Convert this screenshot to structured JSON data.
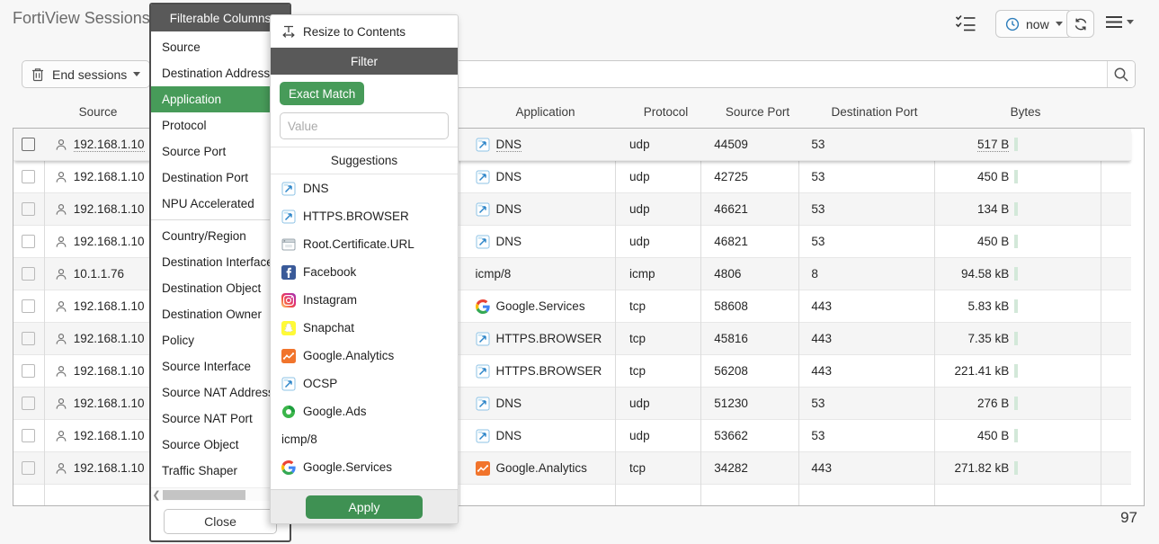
{
  "page": {
    "title": "FortiView Sessions",
    "session_count": "97"
  },
  "colors": {
    "accent_green": "#479b59",
    "apply_green": "#3f9153",
    "dark_bar": "#595959",
    "row_alt": "#f5f5f5"
  },
  "toolbar": {
    "now_label": "now"
  },
  "controls": {
    "end_sessions_label": "End sessions",
    "search_value": ""
  },
  "column_menu": {
    "title": "Filterable Columns",
    "close_label": "Close",
    "items": [
      {
        "label": "Source"
      },
      {
        "label": "Destination Address"
      },
      {
        "label": "Application",
        "selected": true
      },
      {
        "label": "Protocol"
      },
      {
        "label": "Source Port"
      },
      {
        "label": "Destination Port"
      },
      {
        "label": "NPU Accelerated",
        "divider_after": true
      },
      {
        "label": "Country/Region"
      },
      {
        "label": "Destination Interface"
      },
      {
        "label": "Destination Object"
      },
      {
        "label": "Destination Owner"
      },
      {
        "label": "Policy"
      },
      {
        "label": "Source Interface"
      },
      {
        "label": "Source NAT Address"
      },
      {
        "label": "Source NAT Port"
      },
      {
        "label": "Source Object"
      },
      {
        "label": "Traffic Shaper"
      }
    ]
  },
  "filter_popup": {
    "resize_label": "Resize to Contents",
    "title": "Filter",
    "exact_match_label": "Exact Match",
    "value_placeholder": "Value",
    "suggestions_label": "Suggestions",
    "apply_label": "Apply",
    "suggestions": [
      {
        "label": "DNS",
        "icon": "application-generic"
      },
      {
        "label": "HTTPS.BROWSER",
        "icon": "application-generic"
      },
      {
        "label": "Root.Certificate.URL",
        "icon": "browser-window"
      },
      {
        "label": "Facebook",
        "icon": "facebook"
      },
      {
        "label": "Instagram",
        "icon": "instagram"
      },
      {
        "label": "Snapchat",
        "icon": "snapchat"
      },
      {
        "label": "Google.Analytics",
        "icon": "google-analytics"
      },
      {
        "label": "OCSP",
        "icon": "application-generic"
      },
      {
        "label": "Google.Ads",
        "icon": "google-ads"
      },
      {
        "label": "icmp/8",
        "icon": "none"
      },
      {
        "label": "Google.Services",
        "icon": "google-g"
      }
    ]
  },
  "table": {
    "headers": [
      "Source",
      "Application",
      "Protocol",
      "Source Port",
      "Destination Port",
      "Bytes"
    ],
    "rows": [
      {
        "source": "192.168.1.10",
        "application": "DNS",
        "app_icon": "application-generic",
        "protocol": "udp",
        "source_port": "44509",
        "destination_port": "53",
        "bytes": "517 B",
        "hovered": true
      },
      {
        "source": "192.168.1.10",
        "application": "DNS",
        "app_icon": "application-generic",
        "protocol": "udp",
        "source_port": "42725",
        "destination_port": "53",
        "bytes": "450 B"
      },
      {
        "source": "192.168.1.10",
        "application": "DNS",
        "app_icon": "application-generic",
        "protocol": "udp",
        "source_port": "46621",
        "destination_port": "53",
        "bytes": "134 B"
      },
      {
        "source": "192.168.1.10",
        "application": "DNS",
        "app_icon": "application-generic",
        "protocol": "udp",
        "source_port": "46821",
        "destination_port": "53",
        "bytes": "450 B"
      },
      {
        "source": "10.1.1.76",
        "application": "icmp/8",
        "app_icon": "none",
        "protocol": "icmp",
        "source_port": "4806",
        "destination_port": "8",
        "bytes": "94.58 kB"
      },
      {
        "source": "192.168.1.10",
        "application": "Google.Services",
        "app_icon": "google-g",
        "protocol": "tcp",
        "source_port": "58608",
        "destination_port": "443",
        "bytes": "5.83 kB"
      },
      {
        "source": "192.168.1.10",
        "application": "HTTPS.BROWSER",
        "app_icon": "application-generic",
        "protocol": "tcp",
        "source_port": "45816",
        "destination_port": "443",
        "bytes": "7.35 kB"
      },
      {
        "source": "192.168.1.10",
        "application": "HTTPS.BROWSER",
        "app_icon": "application-generic",
        "protocol": "tcp",
        "source_port": "56208",
        "destination_port": "443",
        "bytes": "221.41 kB"
      },
      {
        "source": "192.168.1.10",
        "application": "DNS",
        "app_icon": "application-generic",
        "protocol": "udp",
        "source_port": "51230",
        "destination_port": "53",
        "bytes": "276 B"
      },
      {
        "source": "192.168.1.10",
        "application": "DNS",
        "app_icon": "application-generic",
        "protocol": "udp",
        "source_port": "53662",
        "destination_port": "53",
        "bytes": "450 B"
      },
      {
        "source": "192.168.1.10",
        "application": "Google.Analytics",
        "app_icon": "google-analytics",
        "protocol": "tcp",
        "source_port": "34282",
        "destination_port": "443",
        "bytes": "271.82 kB"
      }
    ]
  }
}
